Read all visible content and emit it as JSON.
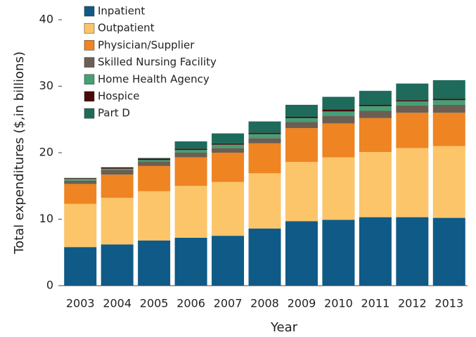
{
  "chart_data": {
    "type": "stacked_bar",
    "x_label": "Year",
    "y_label": "Total expenditures ($,in billions)",
    "categories": [
      "2003",
      "2004",
      "2005",
      "2006",
      "2007",
      "2008",
      "2009",
      "2010",
      "2011",
      "2012",
      "2013"
    ],
    "series": [
      {
        "name": "Inpatient",
        "color": "#0f5a87",
        "values": [
          5.8,
          6.2,
          6.8,
          7.2,
          7.5,
          8.6,
          9.7,
          9.9,
          10.3,
          10.3,
          10.2
        ]
      },
      {
        "name": "Outpatient",
        "color": "#fcc56a",
        "values": [
          6.5,
          7.0,
          7.4,
          7.8,
          8.1,
          8.3,
          8.9,
          9.4,
          9.8,
          10.4,
          10.8
        ]
      },
      {
        "name": "Physician/Supplier",
        "color": "#ee8422",
        "values": [
          3.0,
          3.5,
          3.8,
          4.3,
          4.4,
          4.5,
          5.1,
          5.1,
          5.1,
          5.3,
          5.0
        ]
      },
      {
        "name": "Skilled Nursing Facility",
        "color": "#6b5e53",
        "values": [
          0.5,
          0.7,
          0.7,
          0.7,
          0.7,
          0.8,
          0.9,
          1.1,
          1.1,
          1.1,
          1.2
        ]
      },
      {
        "name": "Home Health Agency",
        "color": "#44a075",
        "values": [
          0.3,
          0.2,
          0.2,
          0.4,
          0.5,
          0.6,
          0.6,
          0.7,
          0.7,
          0.6,
          0.7
        ]
      },
      {
        "name": "Hospice",
        "color": "#4a0a0a",
        "values": [
          0.1,
          0.2,
          0.2,
          0.2,
          0.2,
          0.2,
          0.2,
          0.3,
          0.2,
          0.2,
          0.2
        ]
      },
      {
        "name": "Part D",
        "color": "#1e6b5b",
        "values": [
          0,
          0,
          0.1,
          1.1,
          1.5,
          1.7,
          1.8,
          1.9,
          2.1,
          2.5,
          2.8
        ]
      }
    ],
    "ylim": [
      0,
      40
    ],
    "yticks": [
      0,
      10,
      20,
      30,
      40
    ]
  }
}
